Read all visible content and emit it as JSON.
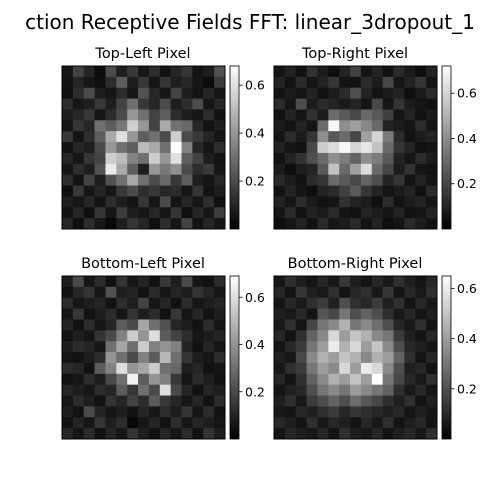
{
  "chart_data": {
    "type": "heatmap",
    "title": "ction Receptive Fields FFT: linear_3dropout_1",
    "colormap": "gray",
    "panels": [
      {
        "title": "Top-Left  Pixel",
        "vmin": 0.0,
        "vmax": 0.68,
        "colorbar_ticks": [
          0.2,
          0.4,
          0.6
        ],
        "values": [
          [
            0.06,
            0.18,
            0.1,
            0.03,
            0.2,
            0.08,
            0.15,
            0.06,
            0.12,
            0.05,
            0.1,
            0.14,
            0.05,
            0.08,
            0.22
          ],
          [
            0.05,
            0.1,
            0.06,
            0.04,
            0.12,
            0.25,
            0.08,
            0.15,
            0.06,
            0.14,
            0.08,
            0.1,
            0.06,
            0.03,
            0.16
          ],
          [
            0.04,
            0.12,
            0.2,
            0.08,
            0.06,
            0.12,
            0.06,
            0.22,
            0.1,
            0.06,
            0.18,
            0.08,
            0.05,
            0.1,
            0.06
          ],
          [
            0.12,
            0.06,
            0.08,
            0.15,
            0.08,
            0.18,
            0.3,
            0.15,
            0.1,
            0.2,
            0.08,
            0.12,
            0.2,
            0.06,
            0.1
          ],
          [
            0.08,
            0.1,
            0.15,
            0.06,
            0.12,
            0.2,
            0.4,
            0.3,
            0.18,
            0.25,
            0.12,
            0.08,
            0.06,
            0.12,
            0.05
          ],
          [
            0.06,
            0.14,
            0.1,
            0.3,
            0.25,
            0.32,
            0.55,
            0.4,
            0.18,
            0.45,
            0.3,
            0.28,
            0.1,
            0.05,
            0.08
          ],
          [
            0.15,
            0.05,
            0.12,
            0.25,
            0.45,
            0.6,
            0.4,
            0.25,
            0.3,
            0.2,
            0.55,
            0.2,
            0.15,
            0.1,
            0.06
          ],
          [
            0.05,
            0.1,
            0.08,
            0.2,
            0.4,
            0.3,
            0.25,
            0.5,
            0.45,
            0.3,
            0.68,
            0.35,
            0.1,
            0.06,
            0.12
          ],
          [
            0.1,
            0.06,
            0.14,
            0.18,
            0.55,
            0.5,
            0.35,
            0.3,
            0.55,
            0.4,
            0.6,
            0.25,
            0.18,
            0.08,
            0.05
          ],
          [
            0.06,
            0.12,
            0.08,
            0.22,
            0.62,
            0.45,
            0.25,
            0.08,
            0.4,
            0.32,
            0.38,
            0.2,
            0.12,
            0.15,
            0.06
          ],
          [
            0.12,
            0.05,
            0.18,
            0.08,
            0.22,
            0.3,
            0.45,
            0.3,
            0.2,
            0.28,
            0.15,
            0.25,
            0.08,
            0.06,
            0.1
          ],
          [
            0.04,
            0.15,
            0.06,
            0.1,
            0.06,
            0.15,
            0.2,
            0.12,
            0.15,
            0.1,
            0.12,
            0.06,
            0.14,
            0.05,
            0.08
          ],
          [
            0.08,
            0.06,
            0.1,
            0.05,
            0.12,
            0.08,
            0.05,
            0.14,
            0.06,
            0.2,
            0.05,
            0.1,
            0.06,
            0.12,
            0.04
          ],
          [
            0.05,
            0.1,
            0.04,
            0.14,
            0.06,
            0.16,
            0.08,
            0.06,
            0.1,
            0.06,
            0.14,
            0.04,
            0.1,
            0.06,
            0.16
          ],
          [
            0.1,
            0.04,
            0.12,
            0.06,
            0.02,
            0.08,
            0.14,
            0.1,
            0.04,
            0.12,
            0.06,
            0.18,
            0.05,
            0.1,
            0.06
          ]
        ]
      },
      {
        "title": "Top-Right Pixel",
        "vmin": 0.0,
        "vmax": 0.72,
        "colorbar_ticks": [
          0.2,
          0.4,
          0.6
        ],
        "values": [
          [
            0.06,
            0.1,
            0.05,
            0.14,
            0.08,
            0.04,
            0.1,
            0.18,
            0.06,
            0.1,
            0.05,
            0.12,
            0.08,
            0.04,
            0.1
          ],
          [
            0.1,
            0.05,
            0.12,
            0.06,
            0.1,
            0.15,
            0.06,
            0.05,
            0.12,
            0.08,
            0.2,
            0.06,
            0.1,
            0.15,
            0.06
          ],
          [
            0.05,
            0.08,
            0.06,
            0.1,
            0.05,
            0.08,
            0.12,
            0.22,
            0.1,
            0.05,
            0.08,
            0.1,
            0.04,
            0.08,
            0.12
          ],
          [
            0.12,
            0.06,
            0.22,
            0.08,
            0.12,
            0.1,
            0.08,
            0.1,
            0.06,
            0.2,
            0.06,
            0.15,
            0.08,
            0.06,
            0.05
          ],
          [
            0.05,
            0.1,
            0.06,
            0.14,
            0.08,
            0.3,
            0.25,
            0.2,
            0.3,
            0.25,
            0.18,
            0.06,
            0.1,
            0.05,
            0.08
          ],
          [
            0.08,
            0.05,
            0.1,
            0.06,
            0.3,
            0.7,
            0.4,
            0.45,
            0.38,
            0.3,
            0.1,
            0.08,
            0.06,
            0.12,
            0.06
          ],
          [
            0.06,
            0.12,
            0.08,
            0.15,
            0.4,
            0.25,
            0.3,
            0.2,
            0.45,
            0.6,
            0.35,
            0.12,
            0.05,
            0.08,
            0.1
          ],
          [
            0.1,
            0.06,
            0.05,
            0.2,
            0.58,
            0.62,
            0.7,
            0.6,
            0.65,
            0.55,
            0.3,
            0.15,
            0.1,
            0.05,
            0.06
          ],
          [
            0.05,
            0.1,
            0.14,
            0.22,
            0.3,
            0.4,
            0.35,
            0.28,
            0.4,
            0.35,
            0.25,
            0.1,
            0.06,
            0.12,
            0.08
          ],
          [
            0.08,
            0.04,
            0.08,
            0.1,
            0.25,
            0.55,
            0.3,
            0.45,
            0.62,
            0.3,
            0.2,
            0.08,
            0.14,
            0.06,
            0.05
          ],
          [
            0.12,
            0.08,
            0.05,
            0.12,
            0.15,
            0.3,
            0.25,
            0.2,
            0.28,
            0.22,
            0.1,
            0.15,
            0.05,
            0.1,
            0.06
          ],
          [
            0.05,
            0.1,
            0.06,
            0.04,
            0.1,
            0.12,
            0.18,
            0.25,
            0.15,
            0.1,
            0.06,
            0.08,
            0.1,
            0.05,
            0.12
          ],
          [
            0.1,
            0.06,
            0.12,
            0.08,
            0.05,
            0.06,
            0.14,
            0.1,
            0.08,
            0.04,
            0.12,
            0.05,
            0.08,
            0.1,
            0.06
          ],
          [
            0.06,
            0.12,
            0.05,
            0.1,
            0.08,
            0.12,
            0.06,
            0.05,
            0.1,
            0.08,
            0.06,
            0.1,
            0.05,
            0.06,
            0.1
          ],
          [
            0.04,
            0.06,
            0.1,
            0.05,
            0.12,
            0.06,
            0.08,
            0.12,
            0.05,
            0.1,
            0.04,
            0.06,
            0.12,
            0.08,
            0.05
          ]
        ]
      },
      {
        "title": "Bottom-Left Pixel",
        "vmin": 0.0,
        "vmax": 0.69,
        "colorbar_ticks": [
          0.2,
          0.4,
          0.6
        ],
        "values": [
          [
            0.08,
            0.2,
            0.06,
            0.12,
            0.05,
            0.14,
            0.06,
            0.1,
            0.05,
            0.15,
            0.08,
            0.2,
            0.06,
            0.05,
            0.12
          ],
          [
            0.05,
            0.1,
            0.14,
            0.06,
            0.22,
            0.08,
            0.1,
            0.05,
            0.12,
            0.06,
            0.1,
            0.08,
            0.14,
            0.1,
            0.06
          ],
          [
            0.12,
            0.06,
            0.08,
            0.1,
            0.05,
            0.12,
            0.08,
            0.18,
            0.06,
            0.1,
            0.05,
            0.12,
            0.06,
            0.08,
            0.1
          ],
          [
            0.06,
            0.15,
            0.05,
            0.08,
            0.12,
            0.06,
            0.14,
            0.08,
            0.12,
            0.05,
            0.15,
            0.06,
            0.1,
            0.05,
            0.08
          ],
          [
            0.1,
            0.05,
            0.12,
            0.06,
            0.1,
            0.25,
            0.2,
            0.45,
            0.3,
            0.22,
            0.1,
            0.08,
            0.05,
            0.12,
            0.06
          ],
          [
            0.05,
            0.08,
            0.06,
            0.14,
            0.2,
            0.35,
            0.55,
            0.4,
            0.6,
            0.25,
            0.18,
            0.12,
            0.06,
            0.08,
            0.1
          ],
          [
            0.08,
            0.12,
            0.1,
            0.06,
            0.3,
            0.45,
            0.3,
            0.55,
            0.35,
            0.4,
            0.35,
            0.1,
            0.05,
            0.1,
            0.06
          ],
          [
            0.06,
            0.05,
            0.08,
            0.12,
            0.4,
            0.3,
            0.2,
            0.35,
            0.25,
            0.5,
            0.3,
            0.14,
            0.08,
            0.06,
            0.12
          ],
          [
            0.12,
            0.1,
            0.05,
            0.25,
            0.35,
            0.6,
            0.4,
            0.45,
            0.55,
            0.3,
            0.28,
            0.08,
            0.1,
            0.05,
            0.06
          ],
          [
            0.05,
            0.06,
            0.12,
            0.08,
            0.2,
            0.3,
            0.65,
            0.25,
            0.4,
            0.35,
            0.15,
            0.06,
            0.12,
            0.08,
            0.05
          ],
          [
            0.1,
            0.08,
            0.06,
            0.12,
            0.1,
            0.25,
            0.15,
            0.3,
            0.2,
            0.6,
            0.2,
            0.1,
            0.05,
            0.1,
            0.08
          ],
          [
            0.06,
            0.12,
            0.08,
            0.05,
            0.14,
            0.1,
            0.18,
            0.12,
            0.25,
            0.15,
            0.1,
            0.06,
            0.1,
            0.05,
            0.12
          ],
          [
            0.08,
            0.05,
            0.2,
            0.1,
            0.06,
            0.08,
            0.05,
            0.1,
            0.06,
            0.12,
            0.08,
            0.14,
            0.06,
            0.12,
            0.05
          ],
          [
            0.05,
            0.1,
            0.06,
            0.14,
            0.08,
            0.12,
            0.02,
            0.06,
            0.1,
            0.05,
            0.12,
            0.06,
            0.1,
            0.08,
            0.06
          ],
          [
            0.1,
            0.06,
            0.12,
            0.05,
            0.1,
            0.06,
            0.14,
            0.08,
            0.05,
            0.1,
            0.06,
            0.12,
            0.05,
            0.14,
            0.08
          ]
        ]
      },
      {
        "title": "Bottom-Right Pixel",
        "vmin": 0.0,
        "vmax": 0.65,
        "colorbar_ticks": [
          0.2,
          0.4,
          0.6
        ],
        "values": [
          [
            0.06,
            0.12,
            0.08,
            0.05,
            0.1,
            0.06,
            0.14,
            0.08,
            0.05,
            0.1,
            0.06,
            0.12,
            0.08,
            0.05,
            0.1
          ],
          [
            0.1,
            0.05,
            0.14,
            0.08,
            0.06,
            0.12,
            0.05,
            0.1,
            0.12,
            0.06,
            0.14,
            0.05,
            0.1,
            0.06,
            0.12
          ],
          [
            0.05,
            0.1,
            0.06,
            0.12,
            0.15,
            0.08,
            0.2,
            0.12,
            0.1,
            0.15,
            0.08,
            0.12,
            0.05,
            0.1,
            0.06
          ],
          [
            0.08,
            0.06,
            0.1,
            0.05,
            0.22,
            0.18,
            0.3,
            0.2,
            0.25,
            0.2,
            0.12,
            0.06,
            0.1,
            0.05,
            0.08
          ],
          [
            0.06,
            0.12,
            0.05,
            0.18,
            0.3,
            0.35,
            0.45,
            0.3,
            0.35,
            0.28,
            0.2,
            0.1,
            0.06,
            0.12,
            0.05
          ],
          [
            0.1,
            0.05,
            0.12,
            0.25,
            0.35,
            0.55,
            0.4,
            0.5,
            0.45,
            0.35,
            0.3,
            0.15,
            0.08,
            0.05,
            0.1
          ],
          [
            0.05,
            0.1,
            0.15,
            0.3,
            0.4,
            0.6,
            0.45,
            0.55,
            0.4,
            0.5,
            0.35,
            0.2,
            0.1,
            0.08,
            0.06
          ],
          [
            0.08,
            0.06,
            0.18,
            0.35,
            0.45,
            0.4,
            0.5,
            0.45,
            0.35,
            0.45,
            0.4,
            0.25,
            0.12,
            0.05,
            0.1
          ],
          [
            0.06,
            0.12,
            0.15,
            0.3,
            0.4,
            0.35,
            0.55,
            0.4,
            0.6,
            0.55,
            0.35,
            0.2,
            0.08,
            0.1,
            0.05
          ],
          [
            0.1,
            0.05,
            0.12,
            0.25,
            0.35,
            0.45,
            0.4,
            0.5,
            0.4,
            0.65,
            0.3,
            0.18,
            0.1,
            0.06,
            0.12
          ],
          [
            0.05,
            0.08,
            0.1,
            0.2,
            0.3,
            0.35,
            0.3,
            0.4,
            0.35,
            0.3,
            0.25,
            0.12,
            0.06,
            0.1,
            0.05
          ],
          [
            0.08,
            0.12,
            0.06,
            0.15,
            0.2,
            0.25,
            0.2,
            0.28,
            0.22,
            0.18,
            0.12,
            0.08,
            0.12,
            0.05,
            0.08
          ],
          [
            0.06,
            0.05,
            0.1,
            0.08,
            0.12,
            0.15,
            0.1,
            0.14,
            0.12,
            0.1,
            0.08,
            0.1,
            0.05,
            0.08,
            0.06
          ],
          [
            0.1,
            0.08,
            0.05,
            0.12,
            0.06,
            0.1,
            0.08,
            0.05,
            0.1,
            0.06,
            0.12,
            0.05,
            0.08,
            0.1,
            0.05
          ],
          [
            0.05,
            0.1,
            0.08,
            0.06,
            0.1,
            0.05,
            0.12,
            0.08,
            0.06,
            0.1,
            0.05,
            0.08,
            0.1,
            0.06,
            0.12
          ]
        ]
      }
    ]
  }
}
